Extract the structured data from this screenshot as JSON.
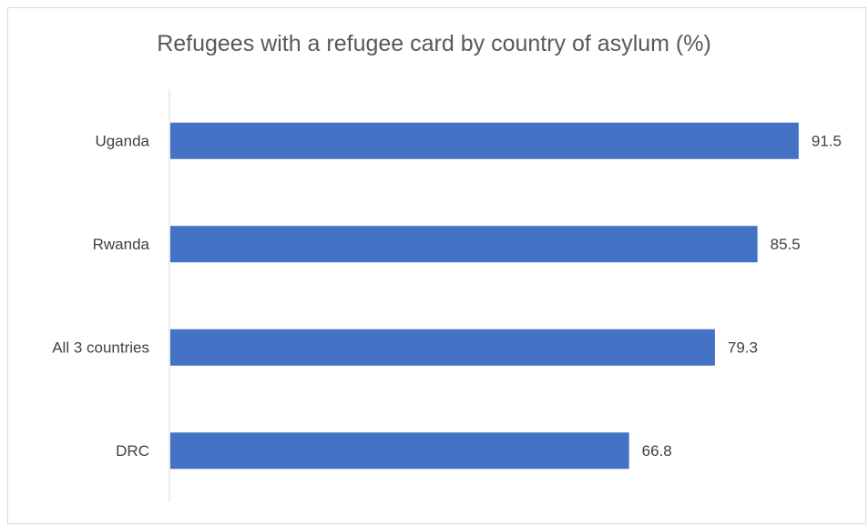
{
  "chart_data": {
    "type": "bar",
    "orientation": "horizontal",
    "title": "Refugees with a refugee card by country of asylum (%)",
    "categories": [
      "Uganda",
      "Rwanda",
      "All 3 countries",
      "DRC"
    ],
    "values": [
      91.5,
      85.5,
      79.3,
      66.8
    ],
    "data_labels": [
      "91.5",
      "85.5",
      "79.3",
      "66.8"
    ],
    "xlim": [
      0,
      100
    ],
    "grid": false,
    "legend": "none",
    "bar_color": "#4472C4"
  }
}
